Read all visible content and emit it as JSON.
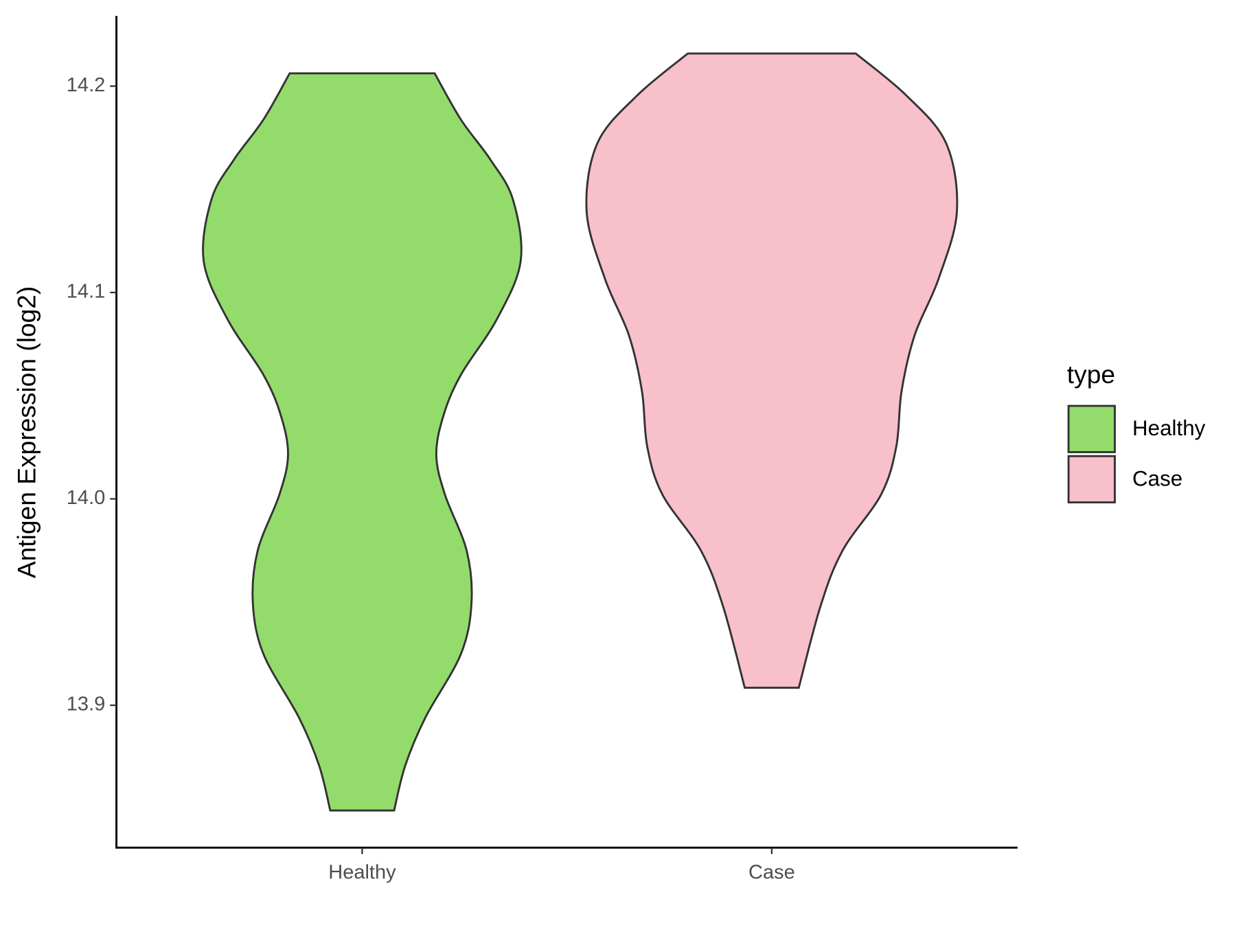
{
  "chart_data": {
    "type": "violin",
    "ylabel": "Antigen Expression (log2)",
    "categories": [
      "Healthy",
      "Case"
    ],
    "legend_title": "type",
    "legend": "right",
    "ylim": [
      13.831,
      14.234
    ],
    "yticks": [
      13.9,
      {
        "value": 14,
        "label": "14.0"
      },
      14.1,
      14.2
    ],
    "series": [
      {
        "name": "Healthy",
        "color": "#93dc6b",
        "y": [
          14.2062,
          14.1838,
          14.1644,
          14.1451,
          14.1153,
          14.0871,
          14.0601,
          14.0407,
          14.0214,
          14.0021,
          13.975,
          13.9499,
          13.9248,
          13.8939,
          13.8707,
          13.849
        ],
        "width": [
          0.177,
          0.241,
          0.313,
          0.368,
          0.387,
          0.329,
          0.241,
          0.199,
          0.181,
          0.202,
          0.255,
          0.267,
          0.241,
          0.154,
          0.105,
          0.078
        ]
      },
      {
        "name": "Case",
        "color": "#f7c0cb",
        "y": [
          14.2158,
          14.1954,
          14.1722,
          14.1393,
          14.1065,
          14.0794,
          14.0523,
          14.0253,
          14.0021,
          13.975,
          13.948,
          13.9085
        ],
        "width": [
          0.205,
          0.329,
          0.426,
          0.452,
          0.407,
          0.349,
          0.317,
          0.304,
          0.267,
          0.173,
          0.119,
          0.066
        ]
      }
    ]
  }
}
